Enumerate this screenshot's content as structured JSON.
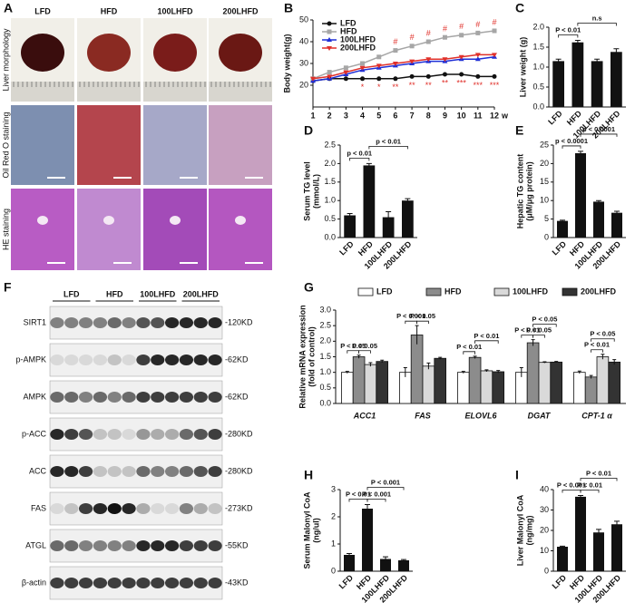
{
  "panel_a": {
    "label": "A",
    "columns": [
      "LFD",
      "HFD",
      "100LHFD",
      "200LHFD"
    ],
    "rows": [
      "Liver morphology",
      "Oil Red O staining",
      "HE staining"
    ]
  },
  "panel_f": {
    "label": "F",
    "groups": [
      "LFD",
      "HFD",
      "100LHFD",
      "200LHFD"
    ],
    "rows": [
      {
        "name": "SIRT1",
        "size": "-120KD"
      },
      {
        "name": "p-AMPK",
        "size": "-62KD"
      },
      {
        "name": "AMPK",
        "size": "-62KD"
      },
      {
        "name": "p-ACC",
        "size": "-280KD"
      },
      {
        "name": "ACC",
        "size": "-280KD"
      },
      {
        "name": "FAS",
        "size": "-273KD"
      },
      {
        "name": "ATGL",
        "size": "-55KD"
      },
      {
        "name": "β-actin",
        "size": "-43KD"
      }
    ]
  },
  "chart_data": [
    {
      "type": "line",
      "panel": "B",
      "ylabel": "Body weight(g)",
      "xlabel": "w",
      "x": [
        1,
        2,
        3,
        4,
        5,
        6,
        7,
        8,
        9,
        10,
        11,
        12
      ],
      "xlim": [
        1,
        12
      ],
      "xticks": [
        1,
        2,
        3,
        4,
        5,
        6,
        7,
        8,
        9,
        10,
        11,
        12
      ],
      "ylim": [
        10,
        50
      ],
      "yticks": [
        20,
        30,
        40,
        50
      ],
      "series": [
        {
          "name": "LFD",
          "color": "#111111",
          "marker": "circle",
          "values": [
            22,
            23,
            23,
            23,
            23,
            23,
            24,
            24,
            25,
            25,
            24,
            24
          ]
        },
        {
          "name": "HFD",
          "color": "#a6a6a6",
          "marker": "square",
          "values": [
            23,
            26,
            28,
            30,
            33,
            36,
            38,
            40,
            42,
            43,
            44,
            45
          ]
        },
        {
          "name": "100LHFD",
          "color": "#1f2fd6",
          "marker": "triangle",
          "values": [
            22,
            23,
            25,
            27,
            28,
            29,
            30,
            31,
            31,
            32,
            32,
            33
          ]
        },
        {
          "name": "200LHFD",
          "color": "#e0302a",
          "marker": "triangle-down",
          "values": [
            23,
            24,
            26,
            28,
            29,
            30,
            31,
            32,
            32,
            33,
            34,
            34
          ]
        }
      ],
      "hash_marks": [
        {
          "x": 6,
          "text": "#"
        },
        {
          "x": 7,
          "text": "#"
        },
        {
          "x": 8,
          "text": "#"
        },
        {
          "x": 9,
          "text": "#"
        },
        {
          "x": 10,
          "text": "#"
        },
        {
          "x": 11,
          "text": "#"
        },
        {
          "x": 12,
          "text": "#"
        }
      ],
      "star_marks": [
        {
          "x": 4,
          "text": "*"
        },
        {
          "x": 5,
          "text": "*"
        },
        {
          "x": 6,
          "text": "**"
        },
        {
          "x": 7,
          "text": "**"
        },
        {
          "x": 8,
          "text": "**"
        },
        {
          "x": 9,
          "text": "**"
        },
        {
          "x": 10,
          "text": "***"
        },
        {
          "x": 11,
          "text": "***"
        },
        {
          "x": 12,
          "text": "***"
        }
      ]
    },
    {
      "type": "bar",
      "panel": "C",
      "ylabel": [
        "Liver weight (g)"
      ],
      "categories": [
        "LFD",
        "HFD",
        "100LHFD",
        "200LHFD"
      ],
      "values": [
        1.15,
        1.62,
        1.15,
        1.38
      ],
      "errors": [
        0.05,
        0.05,
        0.05,
        0.08
      ],
      "color": "#111111",
      "ylim": [
        0,
        2
      ],
      "yticks": [
        {
          "value": 0,
          "label": "0.0"
        },
        0.5,
        {
          "value": 1,
          "label": "1.0"
        },
        1.5,
        {
          "value": 2,
          "label": "2.0"
        }
      ],
      "annotations": [
        "P < 0.01",
        "n.s"
      ]
    },
    {
      "type": "bar",
      "panel": "D",
      "ylabel": [
        "Serum TG level",
        "(mmol/L)"
      ],
      "categories": [
        "LFD",
        "HFD",
        "100LHFD",
        "200LHFD"
      ],
      "values": [
        0.6,
        1.95,
        0.55,
        1.0
      ],
      "errors": [
        0.05,
        0.05,
        0.15,
        0.05
      ],
      "color": "#111111",
      "ylim": [
        0,
        2.5
      ],
      "yticks": [
        {
          "value": 0,
          "label": "0.0"
        },
        0.5,
        {
          "value": 1,
          "label": "1.0"
        },
        1.5,
        {
          "value": 2,
          "label": "2.0"
        },
        2.5
      ],
      "annotations": [
        "p < 0.01",
        "p < 0.01"
      ]
    },
    {
      "type": "bar",
      "panel": "E",
      "ylabel": [
        "Hepatic TG content",
        "(μM/μg protein)"
      ],
      "categories": [
        "LFD",
        "HFD",
        "100LHFD",
        "200LHFD"
      ],
      "values": [
        4.5,
        22.8,
        9.7,
        6.7
      ],
      "errors": [
        0.2,
        0.5,
        0.3,
        0.4
      ],
      "color": "#111111",
      "ylim": [
        0,
        25
      ],
      "yticks": [
        0,
        5,
        10,
        15,
        20,
        25
      ],
      "annotations": [
        "p < 0.0001",
        "p < 0.0001"
      ]
    },
    {
      "type": "grouped_bar",
      "panel": "G",
      "ylabel": [
        "Relative mRNA expression",
        "(fold of control)"
      ],
      "categories": [
        "ACC1",
        "FAS",
        "ELOVL6",
        "DGAT",
        "CPT-1 α"
      ],
      "ylim": [
        0,
        3
      ],
      "yticks": [
        {
          "value": 0,
          "label": "0.0"
        },
        0.5,
        {
          "value": 1,
          "label": "1.0"
        },
        1.5,
        {
          "value": 2,
          "label": "2.0"
        },
        2.5,
        {
          "value": 3,
          "label": "3.0"
        }
      ],
      "series": [
        {
          "name": "LFD",
          "color": "#ffffff",
          "values": [
            1,
            1,
            1,
            1,
            1
          ],
          "errors": [
            0.03,
            0.15,
            0.03,
            0.15,
            0.04
          ]
        },
        {
          "name": "HFD",
          "color": "#8c8c8c",
          "values": [
            1.5,
            2.2,
            1.48,
            1.95,
            0.85
          ],
          "errors": [
            0.05,
            0.3,
            0.04,
            0.1,
            0.05
          ]
        },
        {
          "name": "100LHFD",
          "color": "#d9d9d9",
          "values": [
            1.25,
            1.2,
            1.05,
            1.32,
            1.5
          ],
          "errors": [
            0.06,
            0.1,
            0.03,
            0.02,
            0.08
          ]
        },
        {
          "name": "200LHFD",
          "color": "#333333",
          "values": [
            1.35,
            1.45,
            1.02,
            1.33,
            1.33
          ],
          "errors": [
            0.04,
            0.03,
            0.04,
            0.02,
            0.08
          ]
        }
      ],
      "annotations": [
        "P < 0.05",
        "P < 0.05",
        "P < 0.001",
        "P < 0.05",
        "P < 0.01",
        "P < 0.01",
        "P < 0.01",
        "P < 0.05",
        "P < 0.05",
        "P < 0.01",
        "P < 0.05"
      ]
    },
    {
      "type": "bar",
      "panel": "H",
      "ylabel": [
        "Serum Malonyl CoA",
        "(ng/ul)"
      ],
      "categories": [
        "LFD",
        "HFD",
        "100LHFD",
        "200LHFD"
      ],
      "values": [
        0.6,
        2.3,
        0.45,
        0.4
      ],
      "errors": [
        0.05,
        0.15,
        0.08,
        0.03
      ],
      "color": "#111111",
      "ylim": [
        0,
        3
      ],
      "yticks": [
        0,
        1,
        2,
        3
      ],
      "annotations": [
        "P < 0.01",
        "P < 0.001",
        "P < 0.001"
      ]
    },
    {
      "type": "bar",
      "panel": "I",
      "ylabel": [
        "Liver Malonyl CoA",
        "(ng/mg)"
      ],
      "categories": [
        "LFD",
        "HFD",
        "100LHFD",
        "200LHFD"
      ],
      "values": [
        12,
        36.5,
        19,
        23
      ],
      "errors": [
        0.3,
        0.6,
        1.5,
        1.5
      ],
      "color": "#111111",
      "ylim": [
        0,
        40
      ],
      "yticks": [
        0,
        10,
        20,
        30,
        40
      ],
      "annotations": [
        "P < 0.001",
        "P < 0.01",
        "P < 0.01"
      ]
    }
  ]
}
